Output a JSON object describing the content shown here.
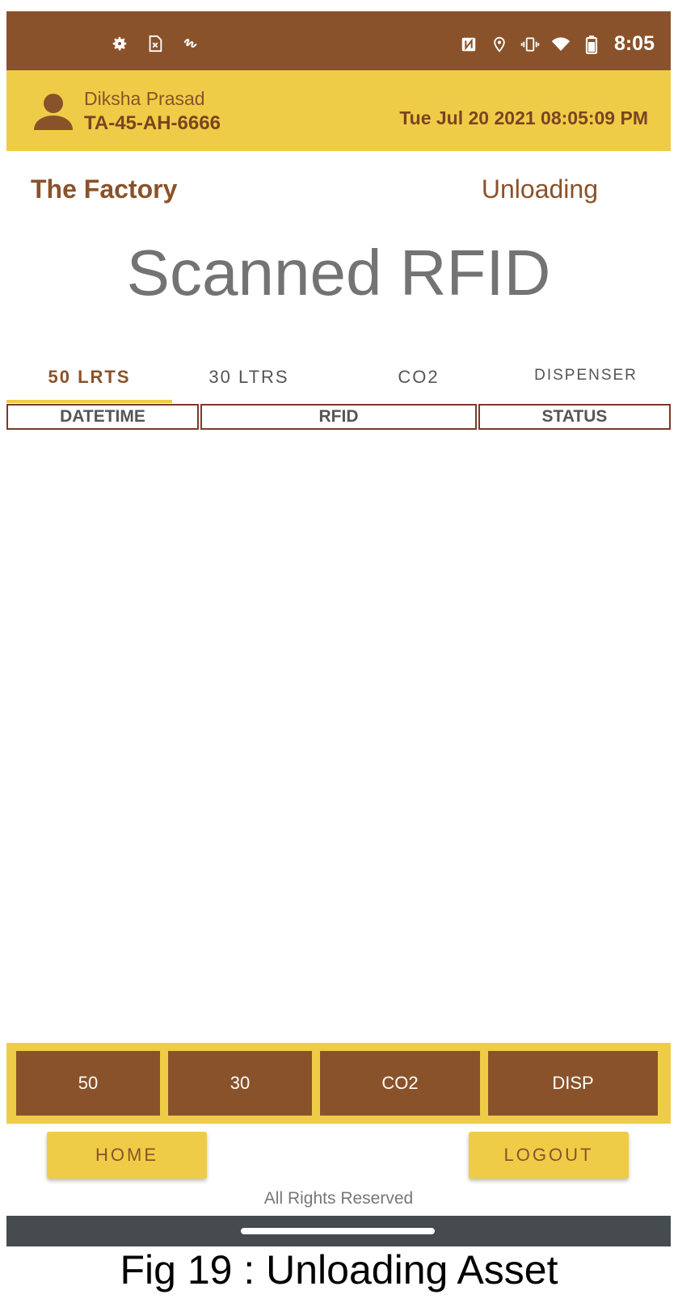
{
  "status_bar": {
    "time": "8:05",
    "left_icons": [
      "settings-icon",
      "sim-icon",
      "gesture-icon"
    ],
    "right_icons": [
      "nfc-icon",
      "location-icon",
      "vibrate-icon",
      "wifi-icon",
      "battery-icon"
    ]
  },
  "user": {
    "name": "Diksha Prasad",
    "id": "TA-45-AH-6666",
    "datetime": "Tue Jul 20 2021 08:05:09 PM"
  },
  "location": "The Factory",
  "mode": "Unloading",
  "page_title": "Scanned RFID",
  "tabs": [
    {
      "label": "50 LRTS",
      "active": true
    },
    {
      "label": "30 LTRS",
      "active": false
    },
    {
      "label": "CO2",
      "active": false
    },
    {
      "label": "DISPENSER",
      "active": false
    }
  ],
  "table": {
    "columns": [
      "DATETIME",
      "RFID",
      "STATUS"
    ],
    "rows": []
  },
  "quick_buttons": [
    "50",
    "30",
    "CO2",
    "DISP"
  ],
  "nav": {
    "home": "HOME",
    "logout": "LOGOUT"
  },
  "footer": "All Rights Reserved",
  "caption": "Fig 19 : Unloading Asset",
  "colors": {
    "brown": "#8a522a",
    "yellow": "#eecc47",
    "gray_text": "#737373",
    "nav_bar": "#454b4f"
  }
}
